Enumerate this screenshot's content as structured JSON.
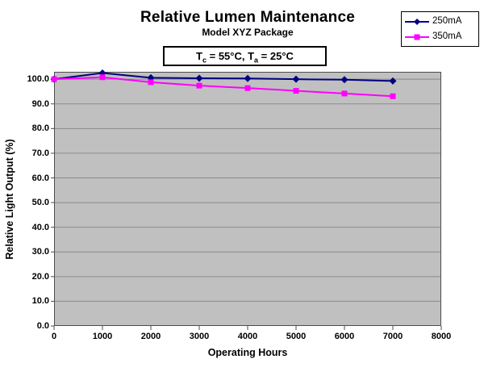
{
  "chart_data": {
    "type": "line",
    "title": "Relative Lumen Maintenance",
    "subtitle": "Model XYZ Package",
    "annotation": {
      "seg1": "T",
      "sub1": "c",
      "seg2": " = 55°C, T",
      "sub2": "a",
      "seg3": " = 25°C",
      "full_text": "Tc = 55°C, Ta = 25°C"
    },
    "xlabel": "Operating Hours",
    "ylabel": "Relative Light Output (%)",
    "x": [
      0,
      1000,
      2000,
      3000,
      4000,
      5000,
      6000,
      7000
    ],
    "series": [
      {
        "name": "250mA",
        "color": "#000080",
        "marker": "diamond",
        "values": [
          100.0,
          102.5,
          100.6,
          100.4,
          100.3,
          100.0,
          99.8,
          99.3
        ]
      },
      {
        "name": "350mA",
        "color": "#FF00FF",
        "marker": "square",
        "values": [
          100.0,
          100.8,
          98.8,
          97.4,
          96.4,
          95.3,
          94.2,
          93.1
        ]
      }
    ],
    "xlim": [
      0,
      8000
    ],
    "ylim": [
      0,
      103
    ],
    "x_ticks": [
      "0",
      "1000",
      "2000",
      "3000",
      "4000",
      "5000",
      "6000",
      "7000",
      "8000"
    ],
    "y_ticks": [
      "0.0",
      "10.0",
      "20.0",
      "30.0",
      "40.0",
      "50.0",
      "60.0",
      "70.0",
      "80.0",
      "90.0",
      "100.0"
    ],
    "grid": true,
    "legend_position": "top-right",
    "plot_bg_color": "#C0C0C0",
    "gridline_color": "#8A8A8A",
    "axis_color": "#4D4D4D"
  }
}
